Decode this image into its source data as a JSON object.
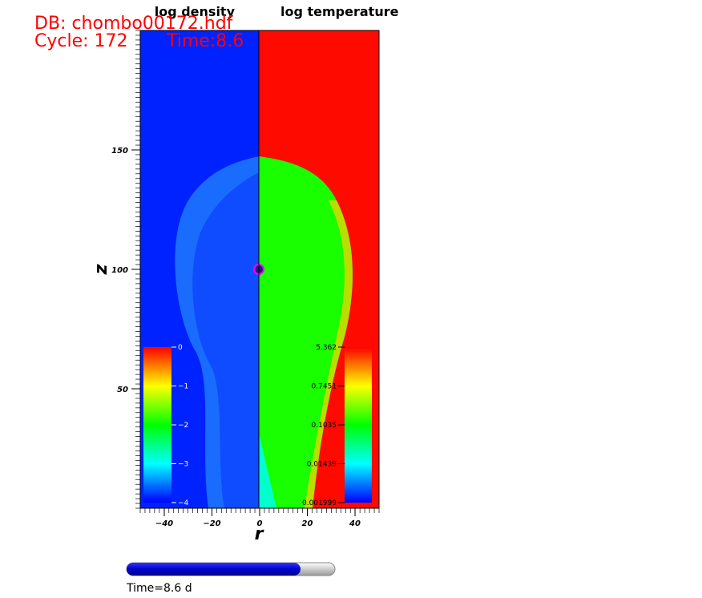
{
  "header": {
    "db": "DB: chombo00172.hdf",
    "cycle": "Cycle: 172",
    "time": "Time:8.6"
  },
  "panels": {
    "left_title": "log density",
    "right_title": "log temperature"
  },
  "x_axis": {
    "label": "r",
    "ticks": [
      "−40",
      "−20",
      "0",
      "20",
      "40"
    ]
  },
  "y_axis": {
    "label": "z",
    "ticks": [
      "50",
      "100",
      "150"
    ]
  },
  "density_legend": {
    "labels": [
      "0",
      "−1",
      "−2",
      "−3",
      "−4"
    ]
  },
  "temperature_legend": {
    "labels": [
      "5.362",
      "0.7451",
      "0.1035",
      "0.01439",
      "0.001999"
    ]
  },
  "slider": {
    "label": "Time=8.6 d"
  }
}
